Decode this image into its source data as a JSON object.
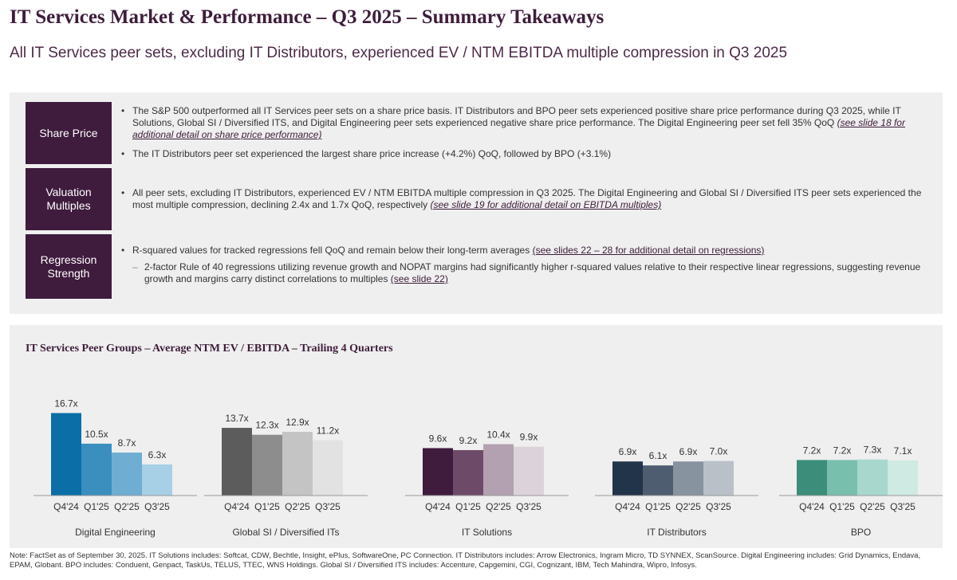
{
  "header": {
    "title": "IT Services Market & Performance – Q3 2025 – Summary Takeaways",
    "subtitle": "All IT Services peer sets, excluding IT Distributors, experienced EV / NTM EBITDA multiple compression in Q3 2025"
  },
  "takeaways": {
    "share_price": {
      "label": "Share Price",
      "b1_text": "The S&P 500 outperformed all IT Services peer sets on a share price basis. IT Distributors and BPO peer sets experienced positive share price performance during Q3 2025, while IT Solutions, Global SI / Diversified ITS, and Digital Engineering peer sets experienced negative share price performance. The Digital Engineering peer set fell 35% QoQ ",
      "b1_ref": "(see slide 18 for additional detail on share price performance)",
      "b2_text": "The IT Distributors peer set experienced the largest share price increase (+4.2%) QoQ, followed by BPO (+3.1%)"
    },
    "valuation": {
      "label": "Valuation Multiples",
      "b1_text": "All peer sets, excluding IT Distributors, experienced EV / NTM EBITDA multiple compression in Q3 2025. The Digital Engineering and Global SI / Diversified ITS peer sets experienced the most multiple compression, declining 2.4x and 1.7x QoQ, respectively ",
      "b1_ref": "(see slide 19 for additional detail on EBITDA multiples)"
    },
    "regression": {
      "label": "Regression Strength",
      "b1_text": "R-squared values for tracked regressions fell QoQ and remain below their long-term averages ",
      "b1_ref": "(see slides 22 – 28 for additional detail on regressions)",
      "sub_text": "2-factor Rule of 40 regressions utilizing revenue growth and NOPAT margins had significantly higher r-squared values relative to their respective linear regressions, suggesting revenue growth and margins carry distinct correlations to multiples ",
      "sub_ref": "(see slide 22)"
    }
  },
  "chart_data": {
    "type": "bar",
    "title": "IT Services Peer Groups – Average NTM EV / EBITDA – Trailing 4 Quarters",
    "categories": [
      "Q4'24",
      "Q1'25",
      "Q2'25",
      "Q3'25"
    ],
    "groups": [
      {
        "name": "Digital Engineering",
        "values": [
          16.7,
          10.5,
          8.7,
          6.3
        ],
        "labels": [
          "16.7x",
          "10.5x",
          "8.7x",
          "6.3x"
        ],
        "colors": [
          "#0b6ea6",
          "#3a8fbf",
          "#6fadd3",
          "#a7cfe6"
        ]
      },
      {
        "name": "Global SI / Diversified ITs",
        "values": [
          13.7,
          12.3,
          12.9,
          11.2
        ],
        "labels": [
          "13.7x",
          "12.3x",
          "12.9x",
          "11.2x"
        ],
        "colors": [
          "#5c5c5c",
          "#8d8d8d",
          "#c4c4c4",
          "#e2e2e2"
        ]
      },
      {
        "name": "IT Solutions",
        "values": [
          9.6,
          9.2,
          10.4,
          9.9
        ],
        "labels": [
          "9.6x",
          "9.2x",
          "10.4x",
          "9.9x"
        ],
        "colors": [
          "#3f1b3d",
          "#6e4a69",
          "#b3a0b0",
          "#dcd3da"
        ]
      },
      {
        "name": "IT Distributors",
        "values": [
          6.9,
          6.1,
          6.9,
          7.0
        ],
        "labels": [
          "6.9x",
          "6.1x",
          "6.9x",
          "7.0x"
        ],
        "colors": [
          "#22344a",
          "#4e5e70",
          "#8893a0",
          "#b9c0c8"
        ]
      },
      {
        "name": "BPO",
        "values": [
          7.2,
          7.2,
          7.3,
          7.1
        ],
        "labels": [
          "7.2x",
          "7.2x",
          "7.3x",
          "7.1x"
        ],
        "colors": [
          "#3c8d7a",
          "#79bfae",
          "#a8d8cd",
          "#cfe9e3"
        ]
      }
    ],
    "grid": false,
    "legend": "none"
  },
  "note": "Note: FactSet as of September 30, 2025. IT Solutions includes: Softcat, CDW, Bechtle, Insight, ePlus, SoftwareOne, PC Connection. IT Distributors includes: Arrow Electronics, Ingram Micro, TD SYNNEX, ScanSource. Digital Engineering includes: Grid Dynamics, Endava, EPAM, Globant. BPO includes: Conduent, Genpact, TaskUs, TELUS, TTEC, WNS Holdings. Global SI / Diversified ITS includes: Accenture, Capgemini, CGI, Cognizant, IBM, Tech Mahindra, Wipro, Infosys."
}
